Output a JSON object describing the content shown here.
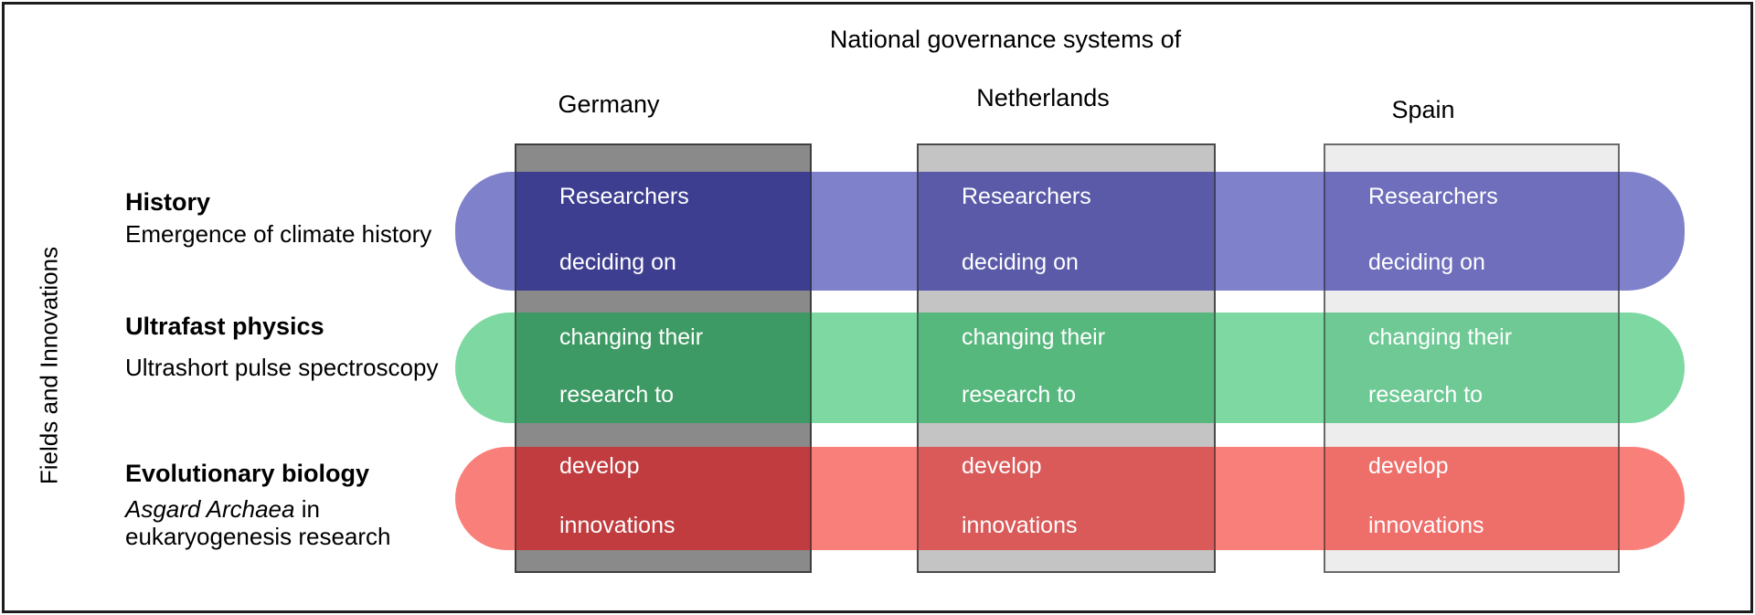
{
  "title": "National governance systems of",
  "y_axis_label": "Fields and Innovations",
  "text_color": "#ffffff",
  "frame_color": "#1d1d1d",
  "columns": [
    {
      "label": "Germany",
      "fill": "#8a8a8a",
      "border": "#3f3f3f",
      "overlap_colors": [
        "#3e3e91",
        "#3e9a64",
        "#c03c3f"
      ]
    },
    {
      "label": "Netherlands",
      "fill": "#c4c4c4",
      "border": "#4a4a4a",
      "overlap_colors": [
        "#5a5aa8",
        "#57b87e",
        "#d95a59"
      ]
    },
    {
      "label": "Spain",
      "fill": "#ededed",
      "border": "#6a6a6a",
      "overlap_colors": [
        "#6e6ebc",
        "#6fc995",
        "#ee6e69"
      ]
    }
  ],
  "rows": [
    {
      "title": "History",
      "subtitle": "Emergence of climate history",
      "bar_color": "#7f82ca",
      "cell_lines": [
        "Researchers",
        "deciding on"
      ]
    },
    {
      "title": "Ultrafast physics",
      "subtitle": "Ultrashort pulse spectroscopy",
      "bar_color": "#7dd8a2",
      "cell_lines": [
        "changing their",
        "research to"
      ]
    },
    {
      "title": "Evolutionary biology",
      "subtitle_italic": "Asgard Archaea",
      "subtitle_rest": " in",
      "subtitle_line2": "eukaryogenesis research",
      "bar_color": "#f9807a",
      "cell_lines": [
        "develop",
        "innovations"
      ]
    }
  ]
}
